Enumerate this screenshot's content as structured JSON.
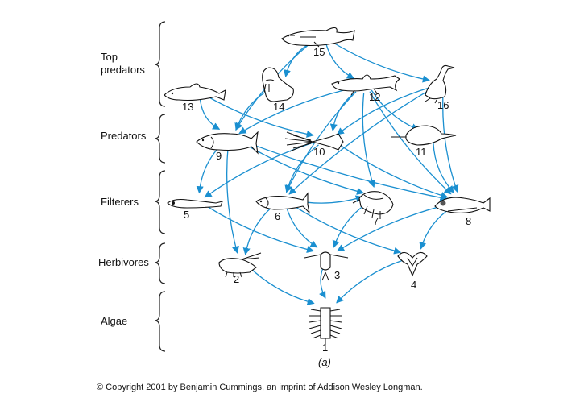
{
  "trophic_levels": [
    {
      "label_line1": "Top",
      "label_line2": "predators"
    },
    {
      "label_line1": "Predators"
    },
    {
      "label_line1": "Filterers"
    },
    {
      "label_line1": "Herbivores"
    },
    {
      "label_line1": "Algae"
    }
  ],
  "organisms": [
    {
      "id": 1,
      "label": "1",
      "name": "algae-icon"
    },
    {
      "id": 2,
      "label": "2",
      "name": "shrimp-icon"
    },
    {
      "id": 3,
      "label": "3",
      "name": "copepod-icon"
    },
    {
      "id": 4,
      "label": "4",
      "name": "pteropod-icon"
    },
    {
      "id": 5,
      "label": "5",
      "name": "larval-fish-icon"
    },
    {
      "id": 6,
      "label": "6",
      "name": "herring-icon"
    },
    {
      "id": 7,
      "label": "7",
      "name": "amphipod-icon"
    },
    {
      "id": 8,
      "label": "8",
      "name": "lanternfish-icon"
    },
    {
      "id": 9,
      "label": "9",
      "name": "salmon-icon"
    },
    {
      "id": 10,
      "label": "10",
      "name": "squid-icon"
    },
    {
      "id": 11,
      "label": "11",
      "name": "sailfish-icon"
    },
    {
      "id": 12,
      "label": "12",
      "name": "shark-icon"
    },
    {
      "id": 13,
      "label": "13",
      "name": "dolphin-icon"
    },
    {
      "id": 14,
      "label": "14",
      "name": "walrus-icon"
    },
    {
      "id": 15,
      "label": "15",
      "name": "killer-whale-icon"
    },
    {
      "id": 16,
      "label": "16",
      "name": "cormorant-icon"
    }
  ],
  "links": [
    [
      15,
      16
    ],
    [
      15,
      12
    ],
    [
      15,
      14
    ],
    [
      15,
      9
    ],
    [
      13,
      9
    ],
    [
      13,
      10
    ],
    [
      14,
      9
    ],
    [
      12,
      10
    ],
    [
      12,
      9
    ],
    [
      12,
      11
    ],
    [
      12,
      8
    ],
    [
      12,
      6
    ],
    [
      12,
      7
    ],
    [
      16,
      10
    ],
    [
      16,
      6
    ],
    [
      16,
      8
    ],
    [
      9,
      5
    ],
    [
      9,
      2
    ],
    [
      9,
      7
    ],
    [
      9,
      8
    ],
    [
      10,
      5
    ],
    [
      10,
      6
    ],
    [
      10,
      8
    ],
    [
      11,
      8
    ],
    [
      6,
      2
    ],
    [
      6,
      3
    ],
    [
      6,
      4
    ],
    [
      6,
      7
    ],
    [
      5,
      3
    ],
    [
      7,
      3
    ],
    [
      8,
      3
    ],
    [
      8,
      4
    ],
    [
      2,
      1
    ],
    [
      3,
      1
    ],
    [
      4,
      1
    ]
  ],
  "caption": "(a)",
  "copyright": "© Copyright 2001 by Benjamin Cummings, an imprint of Addison Wesley Longman."
}
